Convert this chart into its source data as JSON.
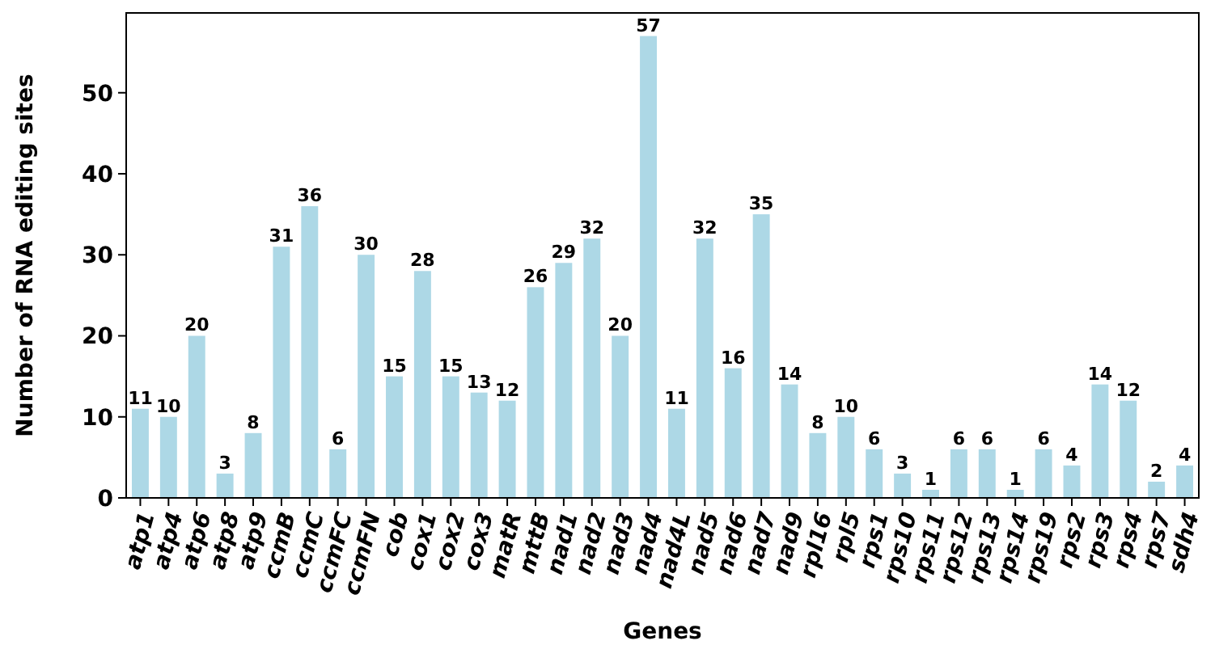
{
  "chart_data": {
    "type": "bar",
    "xlabel": "Genes",
    "ylabel": "Number of RNA editing sites",
    "categories": [
      "atp1",
      "atp4",
      "atp6",
      "atp8",
      "atp9",
      "ccmB",
      "ccmC",
      "ccmFC",
      "ccmFN",
      "cob",
      "cox1",
      "cox2",
      "cox3",
      "matR",
      "mttB",
      "nad1",
      "nad2",
      "nad3",
      "nad4",
      "nad4L",
      "nad5",
      "nad6",
      "nad7",
      "nad9",
      "rpl16",
      "rpl5",
      "rps1",
      "rps10",
      "rps11",
      "rps12",
      "rps13",
      "rps14",
      "rps19",
      "rps2",
      "rps3",
      "rps4",
      "rps7",
      "sdh4"
    ],
    "values": [
      11,
      10,
      20,
      3,
      8,
      31,
      36,
      6,
      30,
      15,
      28,
      15,
      13,
      12,
      26,
      29,
      32,
      20,
      57,
      11,
      32,
      16,
      35,
      14,
      8,
      10,
      6,
      3,
      1,
      6,
      6,
      1,
      6,
      4,
      14,
      12,
      2,
      4
    ],
    "color": "#add8e6",
    "ylim": [
      0,
      59.85
    ],
    "yticks": [
      0,
      10,
      20,
      30,
      40,
      50
    ],
    "data_labels": true,
    "grid": false
  }
}
